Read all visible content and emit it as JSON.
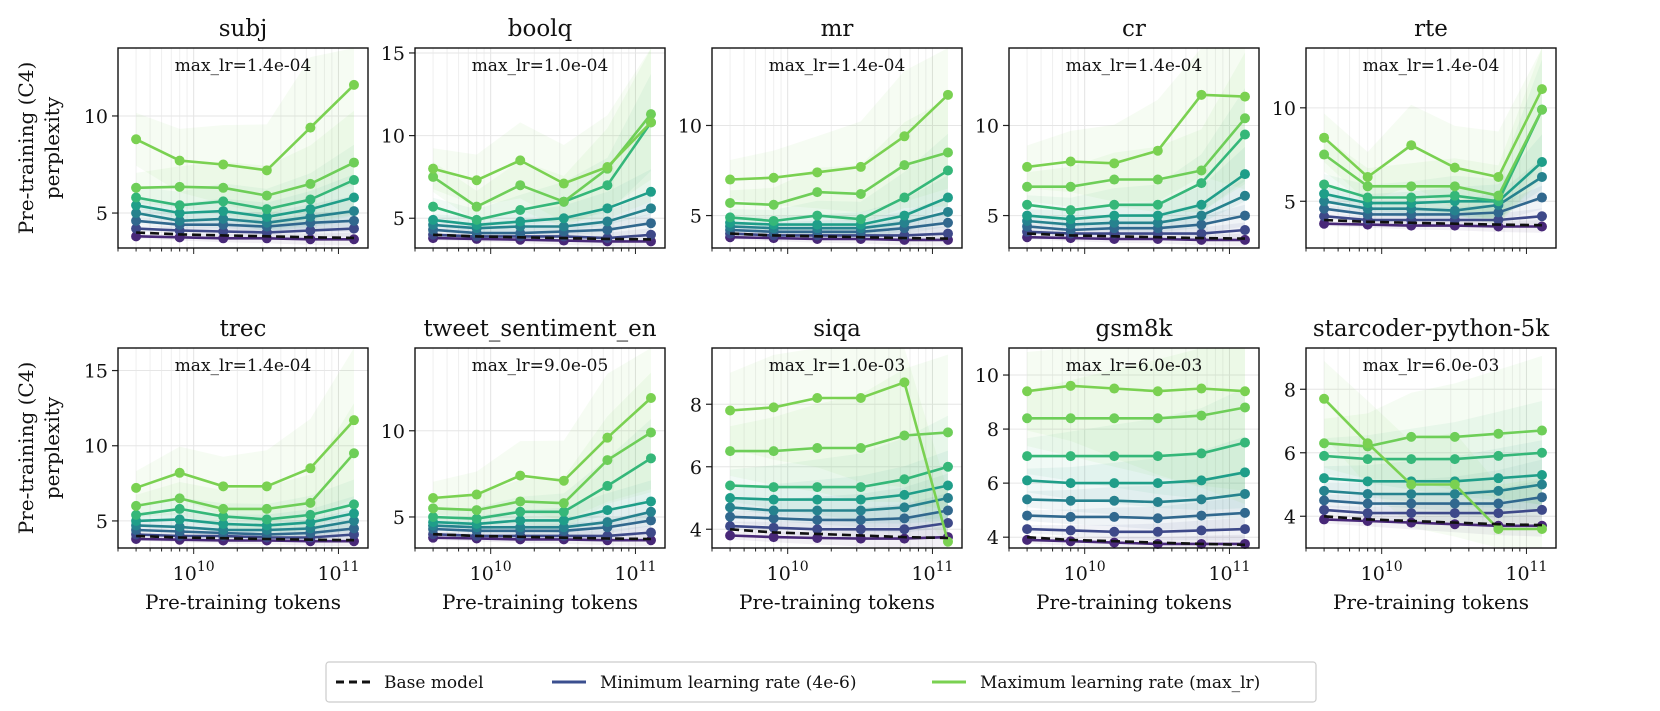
{
  "figure": {
    "ylabel_line1": "Pre-training (C4)",
    "ylabel_line2": "perplexity",
    "xlabel": "Pre-training tokens",
    "x_tick_labels": [
      {
        "base": "10",
        "exp": "10"
      },
      {
        "base": "10",
        "exp": "11"
      }
    ]
  },
  "legend": {
    "items": [
      {
        "label": "Base model",
        "color": "#111111",
        "dashed": true
      },
      {
        "label": "Minimum learning rate (4e-6)",
        "color": "#3b4f8f",
        "dashed": false
      },
      {
        "label": "Maximum learning rate (max_lr)",
        "color": "#7ad151",
        "dashed": false
      }
    ]
  },
  "colors": {
    "min_lr": "#3b4f8f",
    "max_lr": "#7ad151",
    "base": "#111111",
    "palette": [
      "#482878",
      "#3e4989",
      "#31688e",
      "#26828e",
      "#1f9e89",
      "#35b779",
      "#6ece58",
      "#7ad151"
    ]
  },
  "chart_data": [
    {
      "type": "line",
      "title": "subj",
      "annotation": "max_lr=1.4e-04",
      "x": [
        4000000000.0,
        8000000000.0,
        16000000000.0,
        32000000000.0,
        64000000000.0,
        128000000000.0
      ],
      "xscale": "log",
      "xlim": [
        3000000000.0,
        160000000000.0
      ],
      "ylim": [
        3.2,
        13.5
      ],
      "yticks": [
        5,
        10
      ],
      "base_model": [
        4.0,
        3.9,
        3.85,
        3.8,
        3.75,
        3.72
      ],
      "series": [
        [
          3.8,
          3.75,
          3.7,
          3.7,
          3.65,
          3.65
        ],
        [
          4.2,
          4.1,
          4.05,
          4.0,
          4.1,
          4.2
        ],
        [
          4.6,
          4.4,
          4.4,
          4.3,
          4.5,
          4.6
        ],
        [
          5.0,
          4.6,
          4.7,
          4.5,
          4.8,
          5.1
        ],
        [
          5.4,
          5.0,
          5.1,
          4.8,
          5.2,
          5.8
        ],
        [
          5.8,
          5.4,
          5.6,
          5.2,
          5.7,
          6.7
        ],
        [
          6.3,
          6.35,
          6.3,
          5.9,
          6.5,
          7.6
        ],
        [
          8.8,
          7.7,
          7.5,
          7.2,
          9.4,
          11.6
        ]
      ]
    },
    {
      "type": "line",
      "title": "boolq",
      "annotation": "max_lr=1.0e-04",
      "x": [
        4000000000.0,
        8000000000.0,
        16000000000.0,
        32000000000.0,
        64000000000.0,
        128000000000.0
      ],
      "xscale": "log",
      "xlim": [
        3000000000.0,
        160000000000.0
      ],
      "ylim": [
        3.2,
        15.3
      ],
      "yticks": [
        5,
        10,
        15
      ],
      "base_model": [
        4.0,
        3.9,
        3.85,
        3.8,
        3.75,
        3.72
      ],
      "series": [
        [
          3.8,
          3.75,
          3.7,
          3.65,
          3.6,
          3.6
        ],
        [
          4.0,
          3.9,
          3.9,
          3.9,
          3.8,
          4.0
        ],
        [
          4.3,
          4.1,
          4.1,
          4.2,
          4.3,
          4.7
        ],
        [
          4.6,
          4.4,
          4.5,
          4.5,
          4.8,
          5.6
        ],
        [
          4.9,
          4.6,
          4.8,
          5.0,
          5.6,
          6.6
        ],
        [
          5.7,
          4.9,
          5.5,
          6.0,
          7.0,
          10.8
        ],
        [
          7.5,
          5.7,
          7.0,
          6.0,
          8.0,
          11.3
        ],
        [
          8.0,
          7.3,
          8.5,
          7.1,
          8.1,
          10.8
        ]
      ]
    },
    {
      "type": "line",
      "title": "mr",
      "annotation": "max_lr=1.4e-04",
      "x": [
        4000000000.0,
        8000000000.0,
        16000000000.0,
        32000000000.0,
        64000000000.0,
        128000000000.0
      ],
      "xscale": "log",
      "xlim": [
        3000000000.0,
        160000000000.0
      ],
      "ylim": [
        3.2,
        14.3
      ],
      "yticks": [
        5,
        10
      ],
      "base_model": [
        4.0,
        3.9,
        3.85,
        3.8,
        3.75,
        3.72
      ],
      "series": [
        [
          3.8,
          3.75,
          3.7,
          3.7,
          3.65,
          3.65
        ],
        [
          4.0,
          3.9,
          3.9,
          3.9,
          3.9,
          4.0
        ],
        [
          4.2,
          4.1,
          4.1,
          4.1,
          4.3,
          4.6
        ],
        [
          4.4,
          4.3,
          4.3,
          4.3,
          4.6,
          5.2
        ],
        [
          4.6,
          4.5,
          4.5,
          4.5,
          5.0,
          6.0
        ],
        [
          4.9,
          4.7,
          5.0,
          4.8,
          6.0,
          7.5
        ],
        [
          5.7,
          5.6,
          6.3,
          6.2,
          7.8,
          8.5
        ],
        [
          7.0,
          7.1,
          7.4,
          7.7,
          9.4,
          11.7
        ]
      ]
    },
    {
      "type": "line",
      "title": "cr",
      "annotation": "max_lr=1.4e-04",
      "x": [
        4000000000.0,
        8000000000.0,
        16000000000.0,
        32000000000.0,
        64000000000.0,
        128000000000.0
      ],
      "xscale": "log",
      "xlim": [
        3000000000.0,
        160000000000.0
      ],
      "ylim": [
        3.2,
        14.3
      ],
      "yticks": [
        5,
        10
      ],
      "base_model": [
        4.0,
        3.9,
        3.85,
        3.8,
        3.75,
        3.72
      ],
      "series": [
        [
          3.8,
          3.75,
          3.7,
          3.7,
          3.65,
          3.65
        ],
        [
          4.1,
          4.0,
          4.0,
          4.0,
          4.0,
          4.2
        ],
        [
          4.4,
          4.2,
          4.3,
          4.3,
          4.5,
          5.0
        ],
        [
          4.7,
          4.5,
          4.6,
          4.6,
          5.0,
          6.1
        ],
        [
          5.0,
          4.8,
          5.0,
          5.0,
          5.6,
          7.3
        ],
        [
          5.6,
          5.3,
          5.6,
          5.6,
          6.8,
          9.5
        ],
        [
          6.6,
          6.6,
          7.0,
          7.0,
          7.5,
          10.4
        ],
        [
          7.7,
          8.0,
          7.9,
          8.6,
          11.7,
          11.6
        ]
      ]
    },
    {
      "type": "line",
      "title": "rte",
      "annotation": "max_lr=1.4e-04",
      "x": [
        4000000000.0,
        8000000000.0,
        16000000000.0,
        32000000000.0,
        64000000000.0,
        128000000000.0
      ],
      "xscale": "log",
      "xlim": [
        3000000000.0,
        160000000000.0
      ],
      "ylim": [
        2.5,
        13.2
      ],
      "yticks": [
        5,
        10
      ],
      "base_model": [
        4.0,
        3.9,
        3.85,
        3.8,
        3.75,
        3.72
      ],
      "series": [
        [
          3.8,
          3.75,
          3.7,
          3.7,
          3.65,
          3.65
        ],
        [
          4.2,
          4.0,
          4.0,
          4.0,
          4.0,
          4.2
        ],
        [
          4.6,
          4.3,
          4.3,
          4.3,
          4.4,
          5.2
        ],
        [
          5.0,
          4.6,
          4.6,
          4.5,
          4.8,
          6.3
        ],
        [
          5.4,
          4.9,
          4.9,
          5.0,
          5.0,
          7.1
        ],
        [
          5.9,
          5.2,
          5.2,
          5.3,
          5.0,
          9.9
        ],
        [
          7.5,
          5.8,
          5.8,
          5.8,
          5.3,
          9.9
        ],
        [
          8.4,
          6.3,
          8.0,
          6.8,
          6.3,
          11.0
        ]
      ]
    },
    {
      "type": "line",
      "title": "trec",
      "annotation": "max_lr=1.4e-04",
      "x": [
        4000000000.0,
        8000000000.0,
        16000000000.0,
        32000000000.0,
        64000000000.0,
        128000000000.0
      ],
      "xscale": "log",
      "xlim": [
        3000000000.0,
        160000000000.0
      ],
      "ylim": [
        3.2,
        16.5
      ],
      "yticks": [
        5,
        10,
        15
      ],
      "base_model": [
        4.0,
        3.9,
        3.85,
        3.8,
        3.75,
        3.72
      ],
      "series": [
        [
          3.8,
          3.75,
          3.7,
          3.7,
          3.65,
          3.65
        ],
        [
          4.1,
          4.0,
          4.0,
          3.9,
          3.9,
          4.1
        ],
        [
          4.4,
          4.3,
          4.2,
          4.1,
          4.2,
          4.5
        ],
        [
          4.7,
          4.6,
          4.4,
          4.4,
          4.5,
          5.0
        ],
        [
          5.0,
          5.1,
          4.8,
          4.7,
          4.9,
          5.5
        ],
        [
          5.4,
          5.8,
          5.3,
          5.1,
          5.4,
          6.1
        ],
        [
          6.0,
          6.5,
          5.8,
          5.8,
          6.2,
          9.5
        ],
        [
          7.2,
          8.2,
          7.3,
          7.3,
          8.5,
          11.7
        ]
      ]
    },
    {
      "type": "line",
      "title": "tweet_sentiment_en",
      "annotation": "max_lr=9.0e-05",
      "x": [
        4000000000.0,
        8000000000.0,
        16000000000.0,
        32000000000.0,
        64000000000.0,
        128000000000.0
      ],
      "xscale": "log",
      "xlim": [
        3000000000.0,
        160000000000.0
      ],
      "ylim": [
        3.2,
        14.8
      ],
      "yticks": [
        5,
        10
      ],
      "base_model": [
        4.0,
        3.9,
        3.85,
        3.8,
        3.75,
        3.72
      ],
      "series": [
        [
          3.8,
          3.75,
          3.7,
          3.7,
          3.65,
          3.65
        ],
        [
          4.0,
          3.9,
          3.9,
          3.9,
          3.9,
          4.1
        ],
        [
          4.3,
          4.2,
          4.2,
          4.2,
          4.4,
          4.8
        ],
        [
          4.5,
          4.4,
          4.4,
          4.4,
          4.7,
          5.3
        ],
        [
          4.7,
          4.6,
          4.8,
          4.8,
          5.4,
          5.9
        ],
        [
          5.0,
          4.9,
          5.3,
          5.3,
          6.8,
          8.4
        ],
        [
          5.5,
          5.4,
          5.9,
          5.8,
          8.3,
          9.9
        ],
        [
          6.1,
          6.3,
          7.4,
          7.1,
          9.6,
          11.9
        ]
      ]
    },
    {
      "type": "line",
      "title": "siqa",
      "annotation": "max_lr=1.0e-03",
      "x": [
        4000000000.0,
        8000000000.0,
        16000000000.0,
        32000000000.0,
        64000000000.0,
        128000000000.0
      ],
      "xscale": "log",
      "xlim": [
        3000000000.0,
        160000000000.0
      ],
      "ylim": [
        3.4,
        9.8
      ],
      "yticks": [
        4,
        6,
        8
      ],
      "base_model": [
        4.0,
        3.9,
        3.85,
        3.8,
        3.75,
        3.72
      ],
      "series": [
        [
          3.8,
          3.75,
          3.72,
          3.7,
          3.7,
          3.75
        ],
        [
          4.1,
          4.05,
          4.0,
          4.0,
          4.0,
          4.2
        ],
        [
          4.4,
          4.35,
          4.3,
          4.3,
          4.35,
          4.6
        ],
        [
          4.7,
          4.6,
          4.6,
          4.6,
          4.7,
          5.0
        ],
        [
          5.0,
          4.95,
          4.95,
          4.95,
          5.1,
          5.4
        ],
        [
          5.4,
          5.35,
          5.35,
          5.35,
          5.6,
          6.0
        ],
        [
          6.5,
          6.5,
          6.6,
          6.6,
          7.0,
          7.1
        ],
        [
          7.8,
          7.9,
          8.2,
          8.2,
          8.7,
          3.6
        ]
      ]
    },
    {
      "type": "line",
      "title": "gsm8k",
      "annotation": "max_lr=6.0e-03",
      "x": [
        4000000000.0,
        8000000000.0,
        16000000000.0,
        32000000000.0,
        64000000000.0,
        128000000000.0
      ],
      "xscale": "log",
      "xlim": [
        3000000000.0,
        160000000000.0
      ],
      "ylim": [
        3.6,
        11.0
      ],
      "yticks": [
        4,
        6,
        8,
        10
      ],
      "base_model": [
        4.0,
        3.9,
        3.85,
        3.8,
        3.75,
        3.72
      ],
      "series": [
        [
          3.9,
          3.85,
          3.8,
          3.75,
          3.75,
          3.75
        ],
        [
          4.3,
          4.25,
          4.2,
          4.2,
          4.25,
          4.3
        ],
        [
          4.8,
          4.75,
          4.75,
          4.7,
          4.8,
          4.9
        ],
        [
          5.4,
          5.35,
          5.35,
          5.3,
          5.4,
          5.6
        ],
        [
          6.1,
          6.0,
          6.0,
          6.0,
          6.1,
          6.4
        ],
        [
          7.0,
          7.0,
          7.0,
          7.0,
          7.1,
          7.5
        ],
        [
          8.4,
          8.4,
          8.4,
          8.4,
          8.5,
          8.8
        ],
        [
          9.4,
          9.6,
          9.5,
          9.4,
          9.5,
          9.4
        ]
      ]
    },
    {
      "type": "line",
      "title": "starcoder-python-5k",
      "annotation": "max_lr=6.0e-03",
      "x": [
        4000000000.0,
        8000000000.0,
        16000000000.0,
        32000000000.0,
        64000000000.0,
        128000000000.0
      ],
      "xscale": "log",
      "xlim": [
        3000000000.0,
        160000000000.0
      ],
      "ylim": [
        3.0,
        9.3
      ],
      "yticks": [
        4,
        6,
        8
      ],
      "base_model": [
        4.0,
        3.9,
        3.85,
        3.8,
        3.75,
        3.72
      ],
      "series": [
        [
          3.9,
          3.85,
          3.8,
          3.75,
          3.7,
          3.7
        ],
        [
          4.2,
          4.1,
          4.1,
          4.1,
          4.1,
          4.2
        ],
        [
          4.5,
          4.4,
          4.4,
          4.4,
          4.4,
          4.6
        ],
        [
          4.8,
          4.7,
          4.7,
          4.7,
          4.8,
          5.0
        ],
        [
          5.2,
          5.1,
          5.1,
          5.1,
          5.2,
          5.3
        ],
        [
          5.9,
          5.8,
          5.8,
          5.8,
          5.9,
          6.0
        ],
        [
          6.3,
          6.2,
          6.5,
          6.5,
          6.6,
          6.7
        ],
        [
          7.7,
          6.3,
          5.0,
          5.0,
          3.6,
          3.6
        ]
      ]
    }
  ]
}
